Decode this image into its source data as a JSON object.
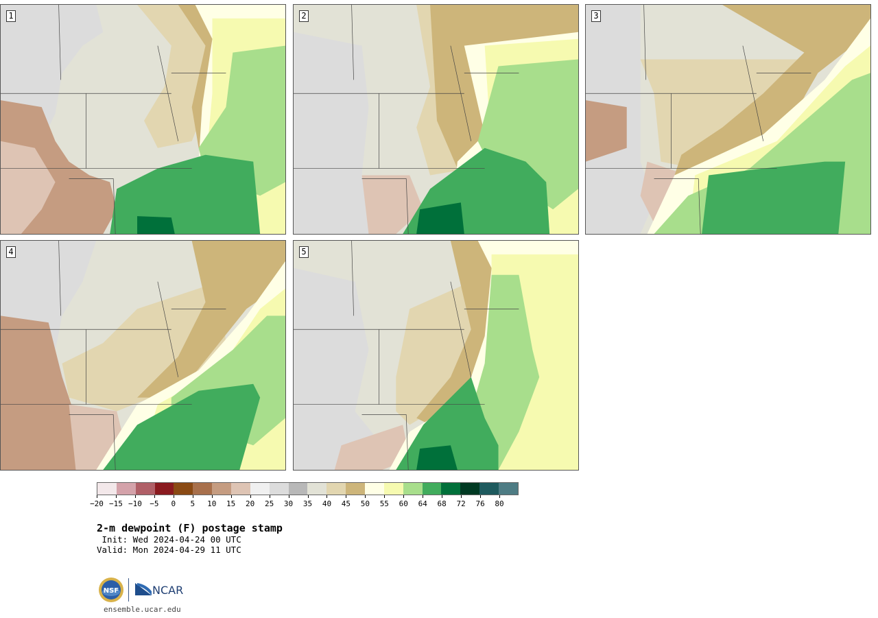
{
  "panels": [
    {
      "label": "1"
    },
    {
      "label": "2"
    },
    {
      "label": "3"
    },
    {
      "label": "4"
    },
    {
      "label": "5"
    }
  ],
  "legend": {
    "ticks": [
      "−20",
      "−15",
      "−10",
      "−5",
      "0",
      "5",
      "10",
      "15",
      "20",
      "25",
      "30",
      "35",
      "40",
      "45",
      "50",
      "55",
      "60",
      "64",
      "68",
      "72",
      "76",
      "80"
    ],
    "colors": [
      "#f3e8ea",
      "#d4a2aa",
      "#b05f67",
      "#8a1a1f",
      "#8a4a14",
      "#a8704c",
      "#c59c81",
      "#dec4b4",
      "#f0f0f0",
      "#dcdcdc",
      "#b8b8b8",
      "#e2e2d6",
      "#e2d6b0",
      "#cdb57a",
      "#ffffe6",
      "#f6fab0",
      "#a8de8c",
      "#41ac5d",
      "#00703a",
      "#003a23",
      "#1e5a5e",
      "#4e7c84"
    ]
  },
  "title": "2-m dewpoint (F) postage stamp",
  "init": " Init: Wed 2024-04-24 00 UTC",
  "valid": "Valid: Mon 2024-04-29 11 UTC",
  "logos": {
    "nsf": "NSF",
    "ncar": "NCAR"
  },
  "url": "ensemble.ucar.edu"
}
